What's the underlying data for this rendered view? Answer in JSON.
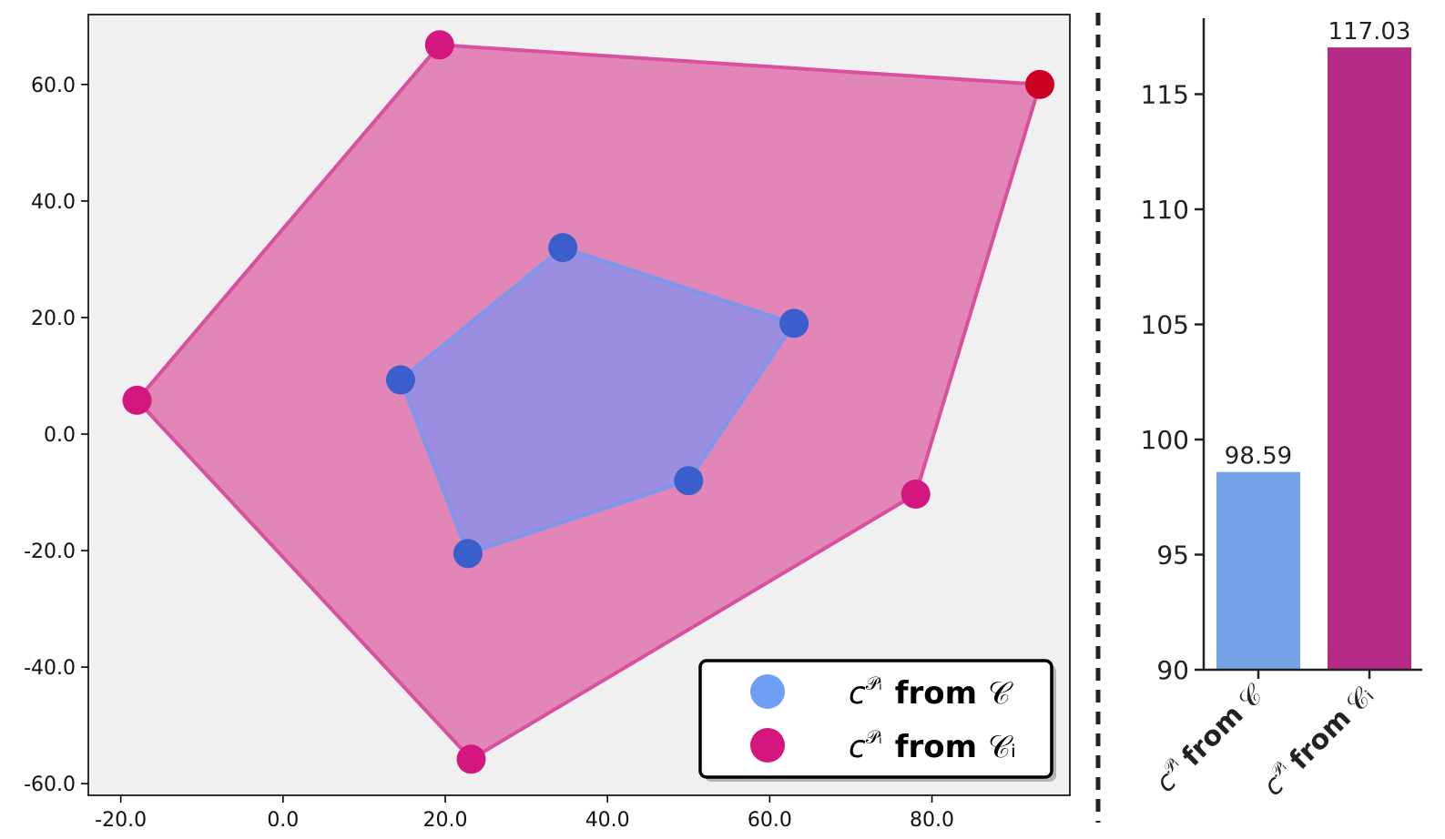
{
  "colors": {
    "blue": "#6fa0f5",
    "blue_fill": "#9c8ee0",
    "blue_edge": "#7e97ec",
    "blue_point": "#3a5fcd",
    "magenta": "#d4177f",
    "magenta_fill": "#e285b7",
    "magenta_edge": "#d9519e",
    "bar_blue": "#75a3e8",
    "bar_magenta": "#b52a84",
    "plot_bg": "#f0f0f0",
    "special_point": "#cc0022"
  },
  "legend": {
    "items": [
      {
        "name": "c",
        "sup": "𝒫ᵢ",
        "word": "from",
        "set": "𝒞",
        "marker_color": "#6fa0f5"
      },
      {
        "name": "c",
        "sup": "𝒫ᵢ",
        "word": "from",
        "set": "𝒞ᵢ",
        "marker_color": "#d4177f"
      }
    ]
  },
  "chart_data": [
    {
      "type": "scatter",
      "title": "",
      "xlabel": "",
      "ylabel": "",
      "xlim": [
        -24,
        97
      ],
      "ylim": [
        -62,
        72
      ],
      "x_ticks": [
        -20,
        0,
        20,
        40,
        60,
        80
      ],
      "x_tick_labels": [
        "-20.0",
        "0.0",
        "20.0",
        "40.0",
        "60.0",
        "80.0"
      ],
      "y_ticks": [
        -60,
        -40,
        -20,
        0,
        20,
        40,
        60
      ],
      "y_tick_labels": [
        "-60.0",
        "-40.0",
        "-20.0",
        "0.0",
        "20.0",
        "40.0",
        "60.0"
      ],
      "legend_position": "bottom-right",
      "series": [
        {
          "name": "c^Pi from C",
          "hull": true,
          "x": [
            34.5,
            63,
            50,
            22.8,
            14.5
          ],
          "y": [
            32,
            19,
            -8,
            -20.5,
            9.3
          ]
        },
        {
          "name": "c^Pi from Ci",
          "hull": true,
          "x": [
            19.3,
            93.3,
            78,
            23.2,
            -18
          ],
          "y": [
            66.8,
            60,
            -10.3,
            -55.8,
            5.8
          ]
        }
      ]
    },
    {
      "type": "bar",
      "title": "",
      "xlabel": "",
      "ylabel": "",
      "ylim": [
        90,
        118.3
      ],
      "y_ticks": [
        90,
        95,
        100,
        105,
        110,
        115
      ],
      "y_tick_labels": [
        "90",
        "95",
        "100",
        "105",
        "110",
        "115"
      ],
      "categories": [
        "c^Pi from C",
        "c^Pi from Ci"
      ],
      "values": [
        98.59,
        117.03
      ],
      "value_labels": [
        "98.59",
        "117.03"
      ]
    }
  ]
}
